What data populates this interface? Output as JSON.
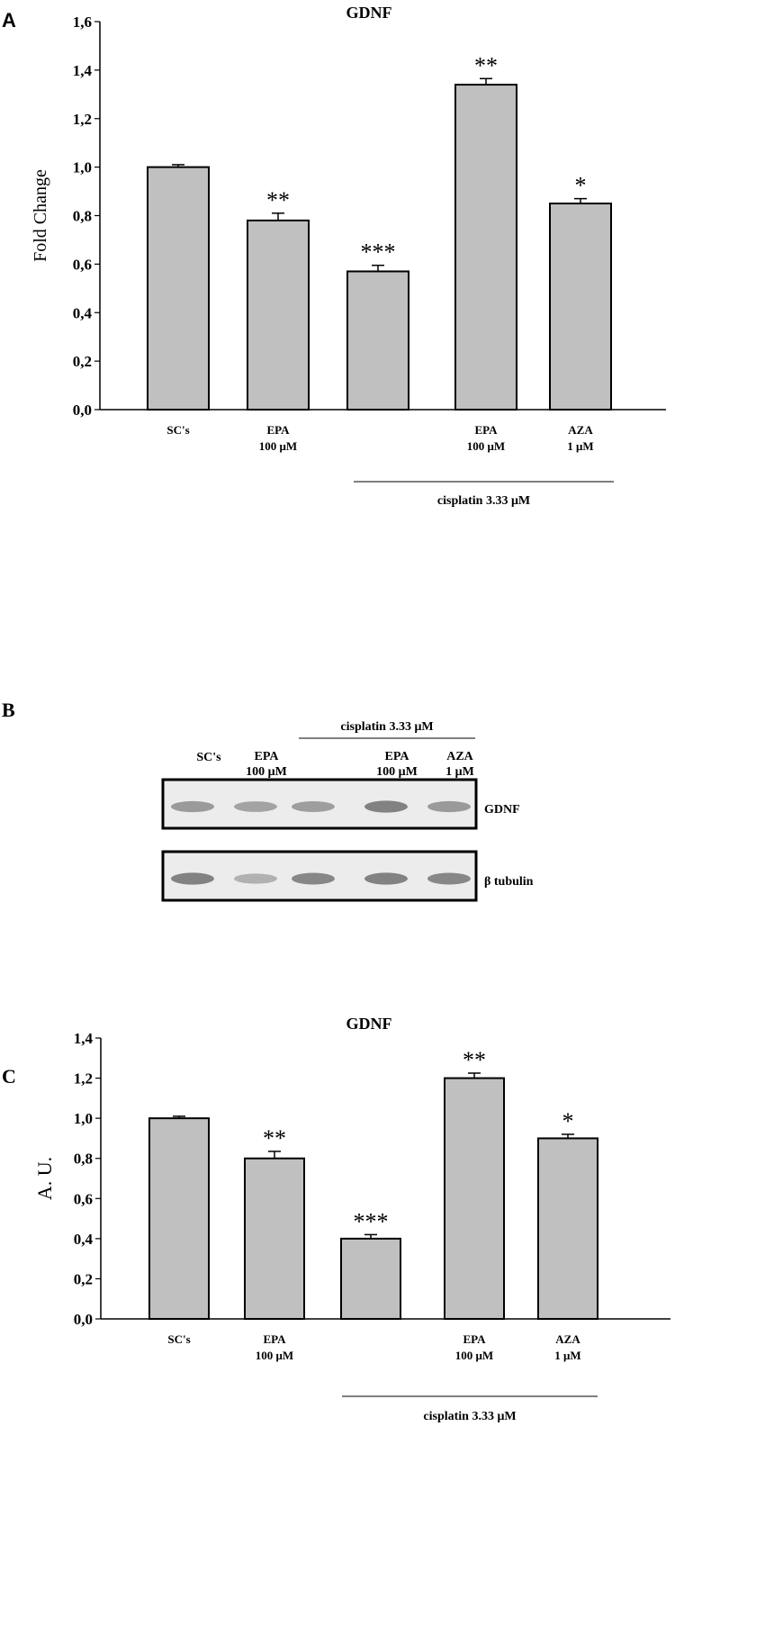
{
  "chart_data": [
    {
      "panel": "A",
      "type": "bar",
      "title": "GDNF",
      "ylabel": "Fold Change",
      "ylim": [
        0,
        1.6
      ],
      "yticks": [
        "0,0",
        "0,2",
        "0,4",
        "0,6",
        "0,8",
        "1,0",
        "1,2",
        "1,4",
        "1,6"
      ],
      "categories": [
        {
          "line1": "SC's",
          "line2": ""
        },
        {
          "line1": "EPA",
          "line2": "100 μM"
        },
        {
          "line1": "",
          "line2": ""
        },
        {
          "line1": "EPA",
          "line2": "100 μM"
        },
        {
          "line1": "AZA",
          "line2": "1 μM"
        }
      ],
      "values": [
        1.0,
        0.78,
        0.57,
        1.34,
        0.85
      ],
      "errors": [
        0.01,
        0.03,
        0.025,
        0.025,
        0.02
      ],
      "significance": [
        "",
        "**",
        "***",
        "**",
        "*"
      ],
      "group_label": "cisplatin 3.33 μM"
    },
    {
      "panel": "C",
      "type": "bar",
      "title": "GDNF",
      "ylabel": "A. U.",
      "ylim": [
        0,
        1.4
      ],
      "yticks": [
        "0,0",
        "0,2",
        "0,4",
        "0,6",
        "0,8",
        "1,0",
        "1,2",
        "1,4"
      ],
      "categories": [
        {
          "line1": "SC's",
          "line2": ""
        },
        {
          "line1": "EPA",
          "line2": "100 μM"
        },
        {
          "line1": "",
          "line2": ""
        },
        {
          "line1": "EPA",
          "line2": "100 μM"
        },
        {
          "line1": "AZA",
          "line2": "1 μM"
        }
      ],
      "values": [
        1.0,
        0.8,
        0.4,
        1.2,
        0.9
      ],
      "errors": [
        0.01,
        0.035,
        0.02,
        0.025,
        0.02
      ],
      "significance": [
        "",
        "**",
        "***",
        "**",
        "*"
      ],
      "group_label": "cisplatin 3.33 μM"
    }
  ],
  "panels": {
    "a": "A",
    "b": "B",
    "c": "C"
  },
  "blot": {
    "group_label": "cisplatin 3.33 μM",
    "lanes": [
      {
        "line1": "SC's",
        "line2": ""
      },
      {
        "line1": "EPA",
        "line2": "100 μM"
      },
      {
        "line1": "",
        "line2": ""
      },
      {
        "line1": "EPA",
        "line2": "100 μM"
      },
      {
        "line1": "AZA",
        "line2": "1 μM"
      }
    ],
    "rows": [
      {
        "label": "GDNF",
        "intensity": [
          0.55,
          0.45,
          0.5,
          0.8,
          0.55
        ]
      },
      {
        "label": "β tubulin",
        "intensity": [
          0.8,
          0.3,
          0.75,
          0.8,
          0.75
        ]
      }
    ]
  }
}
